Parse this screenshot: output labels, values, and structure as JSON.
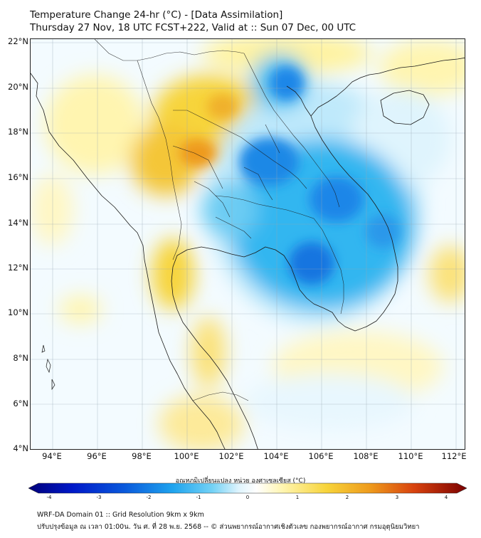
{
  "header": {
    "title_line1": "Temperature Change 24-hr (°C) - [Data Assimilation]",
    "title_line2": "Thursday 27 Nov, 18 UTC FCST+222, Valid at :: Sun 07 Dec, 00 UTC"
  },
  "map": {
    "lat_labels": [
      "22°N",
      "20°N",
      "18°N",
      "16°N",
      "14°N",
      "12°N",
      "10°N",
      "8°N",
      "6°N",
      "4°N"
    ],
    "lon_labels": [
      "94°E",
      "96°E",
      "98°E",
      "100°E",
      "102°E",
      "104°E",
      "106°E",
      "108°E",
      "110°E",
      "112°E"
    ]
  },
  "colorbar": {
    "title": "อุณหภูมิเปลี่ยนแปลง หน่วย องศาเซลเซียส (°C)",
    "ticks": [
      "-4",
      "-3",
      "-2",
      "-1",
      "0",
      "1",
      "2",
      "3",
      "4"
    ],
    "unit": "°C"
  },
  "footer": {
    "line1": "WRF-DA Domain 01 :: Grid Resolution 9km x 9km",
    "line2": "ปรับปรุงข้อมูล ณ เวลา 01:00น. วัน ศ. ที่ 28 พ.ย. 2568 -- © ส่วนพยากรณ์อากาศเชิงตัวเลข กองพยากรณ์อากาศ กรมอุตุนิยมวิทยา"
  },
  "colors": {
    "strong_cooling": "#0a5adc",
    "cooling": "#33b6f0",
    "slight_cooling": "#bfe9fb",
    "neutral": "#ffffff",
    "slight_warming": "#fff5b0",
    "warming": "#f7d43a",
    "strong_warming": "#ee9a1c"
  }
}
